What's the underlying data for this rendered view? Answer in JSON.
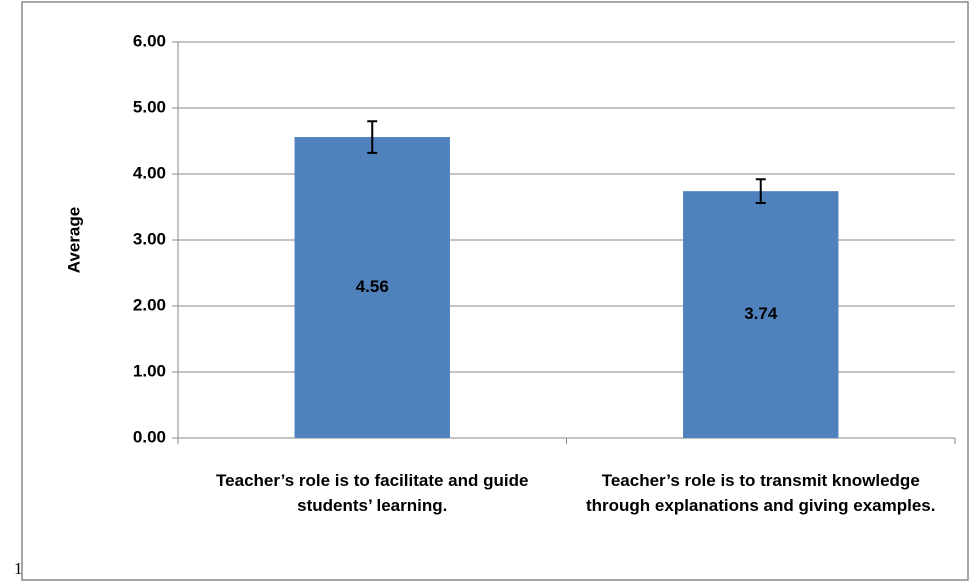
{
  "chart_data": {
    "type": "bar",
    "y_label": "Average",
    "categories": [
      "Teacher’s role is to facilitate and guide students’ learning.",
      "Teacher’s role is to transmit knowledge through explanations and giving examples."
    ],
    "values": [
      4.56,
      3.74
    ],
    "errors": [
      0.24,
      0.18
    ],
    "color": "#4f81bd",
    "ylim": [
      0,
      6
    ],
    "yticks": [
      {
        "value": 0,
        "label": "0.00"
      },
      {
        "value": 1,
        "label": "1.00"
      },
      {
        "value": 2,
        "label": "2.00"
      },
      {
        "value": 3,
        "label": "3.00"
      },
      {
        "value": 4,
        "label": "4.00"
      },
      {
        "value": 5,
        "label": "5.00"
      },
      {
        "value": 6,
        "label": "6.00"
      }
    ],
    "grid": true
  },
  "page_marker": "1"
}
